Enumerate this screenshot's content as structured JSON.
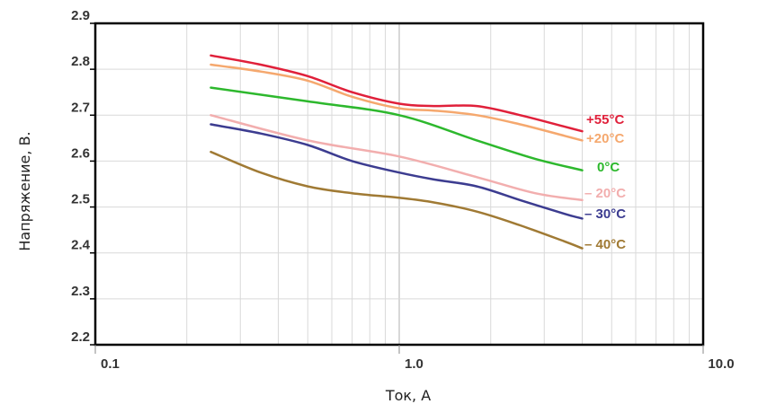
{
  "chart_data": {
    "type": "line",
    "xlabel": "Ток, А",
    "ylabel": "Напряжение, В.",
    "x_scale": "log",
    "xlim": [
      0.1,
      10.0
    ],
    "ylim": [
      2.2,
      2.9
    ],
    "x_ticks": [
      "0.1",
      "1.0",
      "10.0"
    ],
    "y_ticks": [
      "2.2",
      "2.3",
      "2.4",
      "2.5",
      "2.6",
      "2.7",
      "2.8",
      "2.9"
    ],
    "grid": true,
    "series": [
      {
        "name": "+55°C",
        "color": "#e0203a",
        "x": [
          0.24,
          0.35,
          0.5,
          0.7,
          1.0,
          1.3,
          1.8,
          2.5,
          3.5,
          4.0
        ],
        "y": [
          2.83,
          2.81,
          2.785,
          2.75,
          2.725,
          2.72,
          2.72,
          2.7,
          2.675,
          2.665
        ]
      },
      {
        "name": "+20°C",
        "color": "#f5a86e",
        "x": [
          0.24,
          0.35,
          0.5,
          0.7,
          1.0,
          1.3,
          1.8,
          2.5,
          3.5,
          4.0
        ],
        "y": [
          2.81,
          2.795,
          2.775,
          2.74,
          2.715,
          2.71,
          2.7,
          2.68,
          2.655,
          2.645
        ]
      },
      {
        "name": "0°C",
        "color": "#2db82d",
        "x": [
          0.24,
          0.5,
          1.0,
          1.8,
          2.8,
          4.0
        ],
        "y": [
          2.76,
          2.73,
          2.7,
          2.645,
          2.605,
          2.58
        ]
      },
      {
        "name": "– 20°C",
        "color": "#f2aeae",
        "x": [
          0.24,
          0.5,
          1.0,
          1.8,
          2.8,
          4.0
        ],
        "y": [
          2.7,
          2.645,
          2.61,
          2.565,
          2.53,
          2.515
        ]
      },
      {
        "name": "– 30°C",
        "color": "#3c3c90",
        "x": [
          0.24,
          0.35,
          0.5,
          0.7,
          1.0,
          1.3,
          1.8,
          2.5,
          3.5,
          4.0
        ],
        "y": [
          2.68,
          2.66,
          2.635,
          2.6,
          2.575,
          2.56,
          2.545,
          2.515,
          2.485,
          2.475
        ]
      },
      {
        "name": "– 40°C",
        "color": "#a07a34",
        "x": [
          0.24,
          0.35,
          0.5,
          0.7,
          1.0,
          1.3,
          1.8,
          2.5,
          3.5,
          4.0
        ],
        "y": [
          2.62,
          2.575,
          2.545,
          2.53,
          2.52,
          2.51,
          2.49,
          2.46,
          2.425,
          2.41
        ]
      }
    ]
  }
}
